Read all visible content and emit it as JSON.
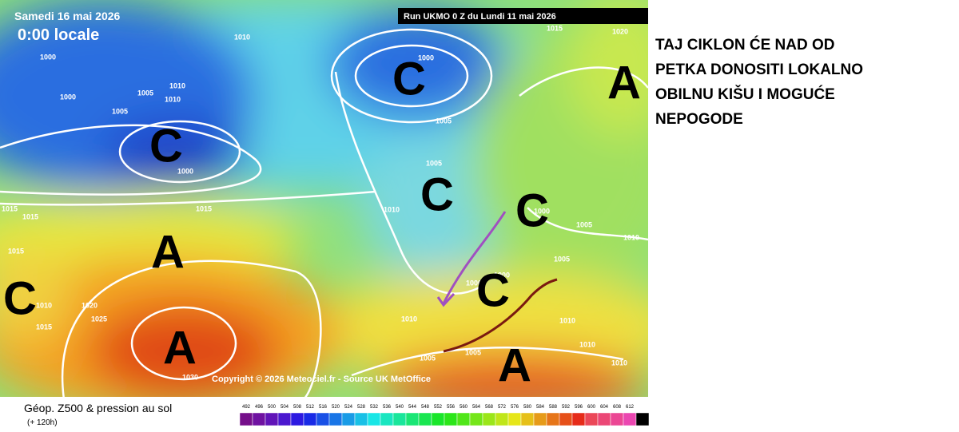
{
  "header": {
    "date": "Samedi 16 mai 2026",
    "time": "0:00 locale",
    "run": "Run UKMO 0 Z du Lundi 11 mai 2026"
  },
  "copyright": "Copyright © 2026 Meteociel.fr - Source UK MetOffice",
  "systems": [
    "C",
    "C",
    "C",
    "C",
    "C",
    "C",
    "A",
    "A",
    "A",
    "A"
  ],
  "isobars": [
    1010,
    1000,
    1000,
    1005,
    1005,
    1010,
    1010,
    1000,
    1000,
    1005,
    1005,
    1015,
    1020,
    1015,
    1015,
    1015,
    1010,
    1000,
    1005,
    1010,
    1015,
    1005,
    1000,
    1000,
    1010,
    1020,
    1025,
    1015,
    1010,
    1010,
    1010,
    1005,
    1005,
    1010,
    1030
  ],
  "annotation": [
    "TAJ CIKLON ĆE NAD OD",
    "PETKA DONOSITI LOKALNO",
    "OBILNU KIŠU I MOGUĆE",
    "NEPOGODE"
  ],
  "footer": {
    "title": "Géop. Z500 & pression au sol",
    "subtitle": "(+ 120h)",
    "scale": [
      492,
      496,
      500,
      504,
      508,
      512,
      516,
      520,
      524,
      528,
      532,
      536,
      540,
      544,
      548,
      552,
      556,
      560,
      564,
      568,
      572,
      576,
      580,
      584,
      588,
      592,
      596,
      600,
      604,
      608,
      612
    ]
  }
}
